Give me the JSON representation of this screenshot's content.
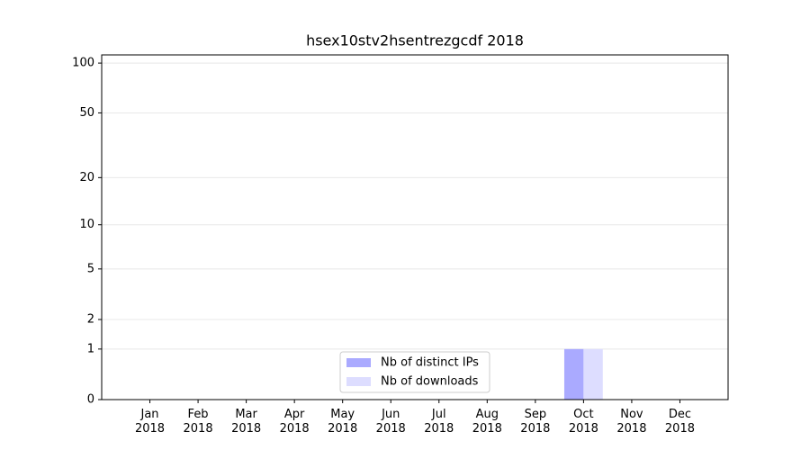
{
  "chart_data": {
    "type": "bar",
    "title": "hsex10stv2hsentrezgcdf 2018",
    "categories": [
      "Jan 2018",
      "Feb 2018",
      "Mar 2018",
      "Apr 2018",
      "May 2018",
      "Jun 2018",
      "Jul 2018",
      "Aug 2018",
      "Sep 2018",
      "Oct 2018",
      "Nov 2018",
      "Dec 2018"
    ],
    "series": [
      {
        "name": "Nb of distinct IPs",
        "color": "#aaaaff",
        "values": [
          0,
          0,
          0,
          0,
          0,
          0,
          0,
          0,
          0,
          1,
          0,
          0
        ]
      },
      {
        "name": "Nb of downloads",
        "color": "#ddddff",
        "values": [
          0,
          0,
          0,
          0,
          0,
          0,
          0,
          0,
          0,
          1,
          0,
          0
        ]
      }
    ],
    "yscale": "log1p",
    "ylim": [
      0,
      112
    ],
    "yticks": [
      0,
      1,
      2,
      5,
      10,
      20,
      50,
      100
    ],
    "grid": true,
    "legend": "lower center"
  }
}
